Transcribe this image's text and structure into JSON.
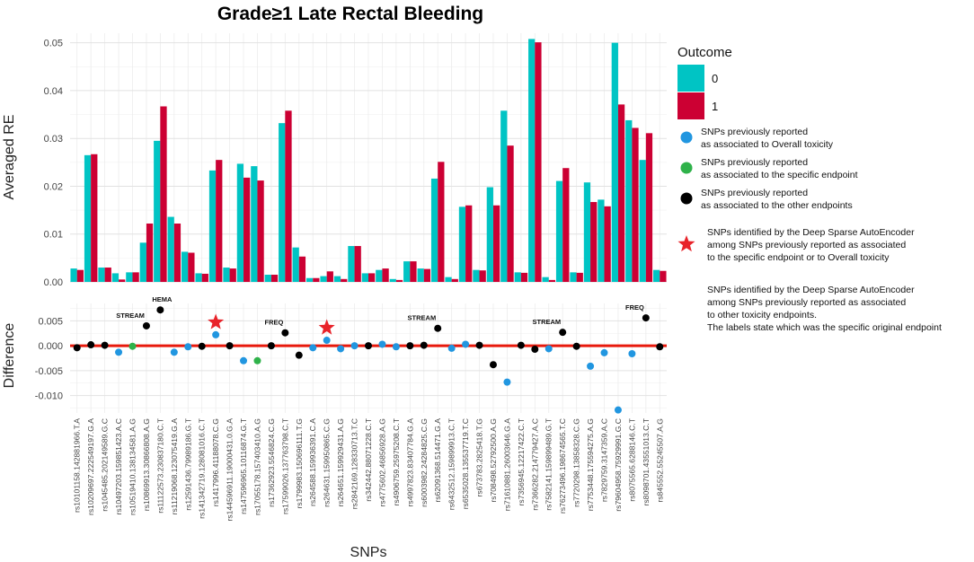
{
  "chart_data": [
    {
      "type": "bar",
      "title": "Grade≥1 Late Rectal Bleeding",
      "xlabel": "SNPs",
      "ylabel": "Averaged RE",
      "ylim": [
        0,
        0.052
      ],
      "yticks": [
        0.0,
        0.01,
        0.02,
        0.03,
        0.04,
        0.05
      ],
      "ytick_labels": [
        "0.00",
        "0.01",
        "0.02",
        "0.03",
        "0.04",
        "0.05"
      ],
      "grid": true,
      "legend_title": "Outcome",
      "categories": [
        "rs10101158.142881966.T.A",
        "rs10209697.222549197.G.A",
        "rs1045485.202149589.G.C",
        "rs10497203.159851423.A.C",
        "rs10519410.138134581.A.G",
        "rs10869913.30866808.A.G",
        "rs11122573.230837180.C.T",
        "rs11219068.123075419.G.A",
        "rs12591436.79989186.G.T",
        "rs141342719.128081016.C.T",
        "rs1417996.41188078.C.G",
        "rs144596911.19000431.0.G.A",
        "rs147596965.10116874.G.T",
        "rs17055178.157403410.A.G",
        "rs17362923.5546824.C.G",
        "rs17599026.137763798.C.T",
        "rs1799983.150696111.T.G",
        "rs264588.159936391.C.A",
        "rs264631.159950865.C.G",
        "rs264651.159929431.A.G",
        "rs2842169.128330713.T.C",
        "rs342442.88071228.C.T",
        "rs4775602.46856928.A.G",
        "rs4906759.25975208.C.T",
        "rs4997823.83407784.G.A",
        "rs6003982.24284825.C.G",
        "rs62091368.514471.G.A",
        "rs6432512.159899913.C.T",
        "rs6535028.135537719.T.C",
        "rs673783.2825418.T.G",
        "rs708498.52792500.A.G",
        "rs71610881.26003646.G.A",
        "rs7356945.12217422.C.T",
        "rs7366282.214779427.A.C",
        "rs7582141.159899489.G.T",
        "rs76273496.198674565.T.C",
        "rs7720298.13858328.C.G",
        "rs7753448.175594275.A.G",
        "rs7829759.3147359.A.C",
        "rs79604958.75929991.G.C",
        "rs8075565.6288146.C.T",
        "rs8098701.43551013.C.T",
        "rs845552.55245507.A.G"
      ],
      "series": [
        {
          "name": "0",
          "color": "#00c4c4",
          "values": [
            0.0028,
            0.0265,
            0.003,
            0.0018,
            0.002,
            0.0082,
            0.0295,
            0.0136,
            0.0063,
            0.0018,
            0.0233,
            0.003,
            0.0247,
            0.0242,
            0.0015,
            0.0332,
            0.0072,
            0.0008,
            0.0012,
            0.0012,
            0.0075,
            0.0018,
            0.0025,
            0.0006,
            0.0043,
            0.0028,
            0.0216,
            0.001,
            0.0157,
            0.0025,
            0.0198,
            0.0358,
            0.002,
            0.0508,
            0.001,
            0.0211,
            0.002,
            0.0208,
            0.0172,
            0.05,
            0.0338,
            0.0255,
            0.0025
          ]
        },
        {
          "name": "1",
          "color": "#cc0033",
          "values": [
            0.0025,
            0.0267,
            0.003,
            0.0005,
            0.002,
            0.0122,
            0.0367,
            0.0122,
            0.0061,
            0.0017,
            0.0255,
            0.0028,
            0.0218,
            0.0212,
            0.0015,
            0.0358,
            0.0053,
            0.0008,
            0.0022,
            0.0006,
            0.0075,
            0.0018,
            0.0028,
            0.0004,
            0.0043,
            0.0027,
            0.0251,
            0.0006,
            0.016,
            0.0024,
            0.016,
            0.0285,
            0.0019,
            0.0501,
            0.0004,
            0.0238,
            0.0019,
            0.0167,
            0.0158,
            0.0371,
            0.0322,
            0.0311,
            0.0023
          ]
        }
      ]
    },
    {
      "type": "scatter",
      "xlabel": "SNPs",
      "ylabel": "Difference",
      "ylim": [
        -0.0135,
        0.0085
      ],
      "yticks": [
        -0.01,
        -0.005,
        0.0,
        0.005
      ],
      "ytick_labels": [
        "-0.010",
        "-0.005",
        "0.000",
        "0.005"
      ],
      "zero_line_color": "#e8190c",
      "values": [
        -0.0004,
        0.0002,
        0.0001,
        -0.0013,
        -0.0001,
        0.004,
        0.0072,
        -0.0013,
        -0.0002,
        -0.0001,
        0.0022,
        0.0,
        -0.003,
        -0.003,
        0.0,
        0.0026,
        -0.0019,
        -0.0004,
        0.0011,
        -0.0006,
        0.0,
        0.0,
        0.0003,
        -0.0002,
        0.0,
        0.0001,
        0.0035,
        -0.0005,
        0.0003,
        0.0001,
        -0.0038,
        -0.0073,
        0.0001,
        -0.0007,
        -0.0006,
        0.0027,
        -0.0001,
        -0.0041,
        -0.0014,
        -0.0129,
        -0.0016,
        0.0056,
        -0.0002
      ],
      "point_types": [
        "black",
        "black",
        "black",
        "blue",
        "green",
        "black",
        "black",
        "blue",
        "blue",
        "black",
        "blue",
        "black",
        "blue",
        "green",
        "black",
        "black",
        "black",
        "blue",
        "blue",
        "blue",
        "blue",
        "black",
        "blue",
        "blue",
        "black",
        "black",
        "black",
        "blue",
        "blue",
        "black",
        "black",
        "blue",
        "black",
        "black",
        "blue",
        "black",
        "black",
        "blue",
        "blue",
        "blue",
        "blue",
        "black",
        "black"
      ],
      "point_colors": {
        "blue": "#2196e0",
        "green": "#2fb24a",
        "black": "#000000"
      },
      "stars": [
        10,
        18
      ],
      "star_color": "#e8232a",
      "annotations": [
        {
          "index": 5,
          "label": "STREAM"
        },
        {
          "index": 6,
          "label": "HEMA"
        },
        {
          "index": 15,
          "label": "FREQ"
        },
        {
          "index": 26,
          "label": "STREAM"
        },
        {
          "index": 35,
          "label": "STREAM"
        },
        {
          "index": 41,
          "label": "FREQ"
        }
      ]
    }
  ],
  "legend": {
    "title": "Outcome",
    "keys": [
      {
        "label": "0",
        "color": "#00c4c4"
      },
      {
        "label": "1",
        "color": "#cc0033"
      }
    ],
    "points": [
      {
        "color": "#2196e0",
        "lines": [
          "SNPs previously reported",
          "as associated to Overall toxicity"
        ]
      },
      {
        "color": "#2fb24a",
        "lines": [
          "SNPs previously reported",
          "as associated to the specific endpoint"
        ]
      },
      {
        "color": "#000000",
        "lines": [
          "SNPs previously reported",
          "as associated to the other endpoints"
        ]
      }
    ],
    "star": {
      "color": "#e8232a",
      "lines": [
        "SNPs identified by the Deep Sparse AutoEncoder",
        "among SNPs previously reported as associated",
        "to the specific endpoint or to Overall toxicity"
      ]
    },
    "note": [
      "SNPs identified by the Deep Sparse AutoEncoder",
      "among SNPs previously reported as associated",
      "to other toxicity endpoints.",
      "The labels state which was the specific original endpoint"
    ]
  }
}
